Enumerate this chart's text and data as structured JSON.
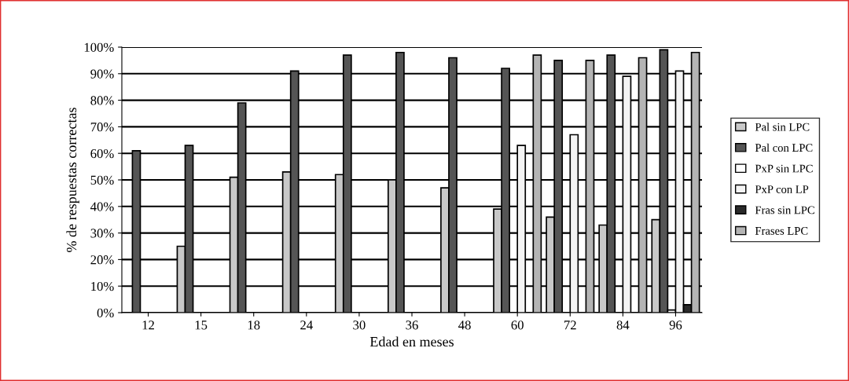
{
  "chart_data": {
    "type": "bar",
    "xlabel": "Edad en meses",
    "ylabel": "% de respuestas correctas",
    "categories": [
      "12",
      "15",
      "18",
      "24",
      "30",
      "36",
      "48",
      "60",
      "72",
      "84",
      "96"
    ],
    "series": [
      {
        "name": "Pal sin LPC",
        "color": "#c8c8c8",
        "values": [
          null,
          25,
          51,
          53,
          52,
          50,
          47,
          39,
          36,
          33,
          35
        ]
      },
      {
        "name": "Pal con LPC",
        "color": "#555555",
        "values": [
          61,
          63,
          79,
          91,
          97,
          98,
          96,
          92,
          95,
          97,
          99
        ]
      },
      {
        "name": "PxP sin LPC",
        "color": "#ffffff",
        "values": [
          null,
          null,
          null,
          null,
          null,
          null,
          null,
          null,
          null,
          null,
          1
        ]
      },
      {
        "name": "PxP con LP",
        "color": "#f4f4f4",
        "values": [
          null,
          null,
          null,
          null,
          null,
          null,
          null,
          63,
          67,
          89,
          91
        ]
      },
      {
        "name": "Fras sin LPC",
        "color": "#2a2a2a",
        "values": [
          null,
          null,
          null,
          null,
          null,
          null,
          null,
          null,
          null,
          null,
          3
        ]
      },
      {
        "name": "Frases LPC",
        "color": "#b4b4b4",
        "values": [
          null,
          null,
          null,
          null,
          null,
          null,
          null,
          97,
          95,
          96,
          98
        ]
      }
    ],
    "ylim": [
      0,
      100
    ],
    "yticks": [
      {
        "value": 0,
        "label": "0%"
      },
      {
        "value": 10,
        "label": "10%"
      },
      {
        "value": 20,
        "label": "20%"
      },
      {
        "value": 30,
        "label": "30%"
      },
      {
        "value": 40,
        "label": "40%"
      },
      {
        "value": 50,
        "label": "50%"
      },
      {
        "value": 60,
        "label": "60%"
      },
      {
        "value": 70,
        "label": "70%"
      },
      {
        "value": 80,
        "label": "80%"
      },
      {
        "value": 90,
        "label": "90%"
      },
      {
        "value": 100,
        "label": "100%"
      }
    ],
    "grid": "y",
    "legend": "right"
  }
}
